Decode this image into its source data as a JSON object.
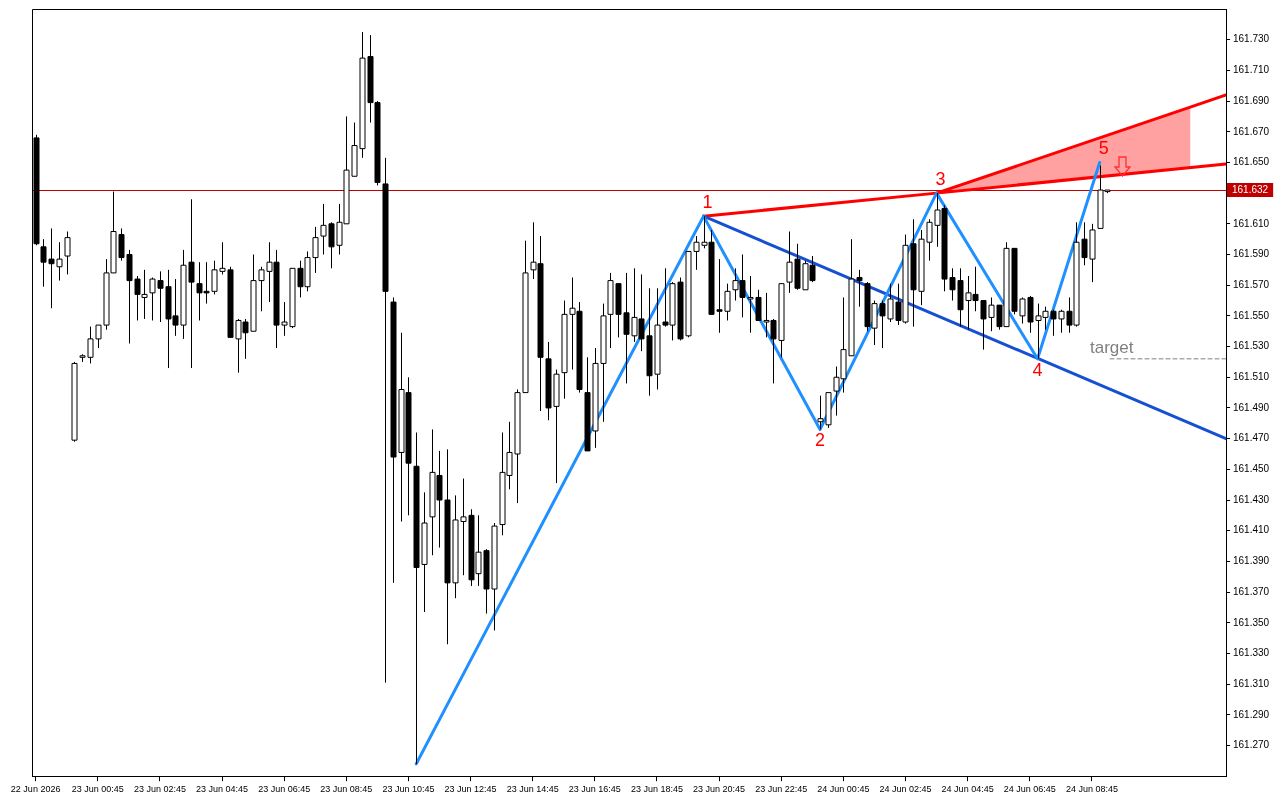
{
  "chart_data": {
    "type": "candlestick",
    "colors": [
      "#000000",
      "#000000",
      "#000000",
      "#ffffff",
      "#ffffff",
      "#ffffff",
      "#ffffff",
      "#ffffff",
      "#ffffff",
      "#ffffff",
      "#ffffff",
      "#000000",
      "#000000",
      "#000000",
      "#ffffff",
      "#ffffff",
      "#000000",
      "#000000",
      "#000000",
      "#ffffff",
      "#000000",
      "#000000",
      "#000000",
      "#ffffff",
      "#ffffff",
      "#000000",
      "#ffffff",
      "#000000",
      "#ffffff",
      "#ffffff",
      "#ffffff",
      "#000000",
      "#ffffff",
      "#ffffff",
      "#000000",
      "#ffffff",
      "#ffffff",
      "#ffffff",
      "#000000",
      "#ffffff",
      "#ffffff",
      "#ffffff",
      "#ffffff",
      "#000000",
      "#000000",
      "#000000",
      "#000000",
      "#ffffff",
      "#000000",
      "#000000",
      "#ffffff",
      "#ffffff",
      "#000000",
      "#000000",
      "#ffffff",
      "#ffffff",
      "#000000",
      "#ffffff",
      "#000000",
      "#ffffff",
      "#ffffff",
      "#ffffff",
      "#ffffff",
      "#ffffff",
      "#ffffff",
      "#000000",
      "#000000",
      "#ffffff",
      "#ffffff",
      "#ffffff",
      "#000000",
      "#000000",
      "#ffffff",
      "#ffffff",
      "#ffffff",
      "#000000",
      "#000000",
      "#ffffff",
      "#000000",
      "#000000",
      "#ffffff",
      "#000000",
      "#ffffff",
      "#000000",
      "#ffffff",
      "#ffffff",
      "#ffffff",
      "#000000",
      "#000000",
      "#ffffff",
      "#ffffff",
      "#000000",
      "#ffffff",
      "#000000",
      "#ffffff",
      "#000000",
      "#ffffff",
      "#ffffff",
      "#000000",
      "#ffffff",
      "#000000",
      "#ffffff",
      "#ffffff",
      "#ffffff",
      "#ffffff",
      "#ffffff",
      "#000000",
      "#000000",
      "#ffffff",
      "#000000",
      "#ffffff",
      "#000000",
      "#ffffff",
      "#000000",
      "#ffffff",
      "#ffffff",
      "#ffffff",
      "#000000",
      "#000000",
      "#000000",
      "#ffffff",
      "#000000",
      "#000000",
      "#ffffff",
      "#000000",
      "#ffffff",
      "#000000",
      "#ffffff",
      "#000000",
      "#ffffff",
      "#ffffff",
      "#000000",
      "#ffffff",
      "#000000",
      "#ffffff",
      "#000000",
      "#ffffff",
      "#ffffff",
      "#ffffff"
    ],
    "x": [
      "2026-06-22T22:45",
      "2026-06-22T23:00",
      "2026-06-22T23:15",
      "2026-06-22T23:30",
      "2026-06-22T23:45",
      "2026-06-23T00:00",
      "2026-06-23T00:15",
      "2026-06-23T00:30",
      "2026-06-23T00:45",
      "2026-06-23T01:00",
      "2026-06-23T01:15",
      "2026-06-23T01:30",
      "2026-06-23T01:45",
      "2026-06-23T02:00",
      "2026-06-23T02:15",
      "2026-06-23T02:30",
      "2026-06-23T02:45",
      "2026-06-23T03:00",
      "2026-06-23T03:15",
      "2026-06-23T03:30",
      "2026-06-23T03:45",
      "2026-06-23T04:00",
      "2026-06-23T04:15",
      "2026-06-23T04:30",
      "2026-06-23T04:45",
      "2026-06-23T05:00",
      "2026-06-23T05:15",
      "2026-06-23T05:30",
      "2026-06-23T05:45",
      "2026-06-23T06:00",
      "2026-06-23T06:15",
      "2026-06-23T06:30",
      "2026-06-23T06:45",
      "2026-06-23T07:00",
      "2026-06-23T07:15",
      "2026-06-23T07:30",
      "2026-06-23T07:45",
      "2026-06-23T08:00",
      "2026-06-23T08:15",
      "2026-06-23T08:30",
      "2026-06-23T08:45",
      "2026-06-23T09:00",
      "2026-06-23T09:15",
      "2026-06-23T09:30",
      "2026-06-23T09:45",
      "2026-06-23T10:00",
      "2026-06-23T10:15",
      "2026-06-23T10:30",
      "2026-06-23T10:45",
      "2026-06-23T11:00",
      "2026-06-23T11:15",
      "2026-06-23T11:30",
      "2026-06-23T11:45",
      "2026-06-23T12:00",
      "2026-06-23T12:15",
      "2026-06-23T12:30",
      "2026-06-23T12:45",
      "2026-06-23T13:00",
      "2026-06-23T13:15",
      "2026-06-23T13:30",
      "2026-06-23T13:45",
      "2026-06-23T14:00",
      "2026-06-23T14:15",
      "2026-06-23T14:30",
      "2026-06-23T14:45",
      "2026-06-23T15:00",
      "2026-06-23T15:15",
      "2026-06-23T15:30",
      "2026-06-23T15:45",
      "2026-06-23T16:00",
      "2026-06-23T16:15",
      "2026-06-23T16:30",
      "2026-06-23T16:45",
      "2026-06-23T17:00",
      "2026-06-23T17:15",
      "2026-06-23T17:30",
      "2026-06-23T17:45",
      "2026-06-23T18:00",
      "2026-06-23T18:15",
      "2026-06-23T18:30",
      "2026-06-23T18:45",
      "2026-06-23T19:00",
      "2026-06-23T19:15",
      "2026-06-23T19:30",
      "2026-06-23T19:45",
      "2026-06-23T20:00",
      "2026-06-23T20:15",
      "2026-06-23T20:30",
      "2026-06-23T20:45",
      "2026-06-23T21:00",
      "2026-06-23T21:15",
      "2026-06-23T21:30",
      "2026-06-23T21:45",
      "2026-06-23T22:00",
      "2026-06-23T22:15",
      "2026-06-23T22:30",
      "2026-06-23T22:45",
      "2026-06-23T23:00",
      "2026-06-23T23:15",
      "2026-06-23T23:30",
      "2026-06-23T23:45",
      "2026-06-24T00:00",
      "2026-06-24T00:15",
      "2026-06-24T00:30",
      "2026-06-24T00:45",
      "2026-06-24T01:00",
      "2026-06-24T01:15",
      "2026-06-24T01:30",
      "2026-06-24T01:45",
      "2026-06-24T02:00",
      "2026-06-24T02:15",
      "2026-06-24T02:30",
      "2026-06-24T02:45",
      "2026-06-24T03:00",
      "2026-06-24T03:15",
      "2026-06-24T03:30",
      "2026-06-24T03:45",
      "2026-06-24T04:00",
      "2026-06-24T04:15",
      "2026-06-24T04:30",
      "2026-06-24T04:45",
      "2026-06-24T05:00",
      "2026-06-24T05:15",
      "2026-06-24T05:30",
      "2026-06-24T05:45",
      "2026-06-24T06:00",
      "2026-06-24T06:15",
      "2026-06-24T06:30",
      "2026-06-24T06:45",
      "2026-06-24T07:00",
      "2026-06-24T07:15",
      "2026-06-24T07:30",
      "2026-06-24T07:45",
      "2026-06-24T08:00",
      "2026-06-24T08:15",
      "2026-06-24T08:30",
      "2026-06-24T08:45",
      "2026-06-24T09:00",
      "2026-06-24T09:15"
    ],
    "ohlc": [
      [
        161.666,
        161.668,
        161.596,
        161.597
      ],
      [
        161.595,
        161.6,
        161.569,
        161.585
      ],
      [
        161.587,
        161.607,
        161.555,
        161.584
      ],
      [
        161.582,
        161.598,
        161.573,
        161.587
      ],
      [
        161.589,
        161.605,
        161.577,
        161.601
      ],
      [
        161.469,
        161.52,
        161.468,
        161.519
      ],
      [
        161.523,
        161.525,
        161.52,
        161.524
      ],
      [
        161.523,
        161.543,
        161.519,
        161.535
      ],
      [
        161.535,
        161.544,
        161.529,
        161.544
      ],
      [
        161.544,
        161.587,
        161.541,
        161.578
      ],
      [
        161.578,
        161.631,
        161.578,
        161.605
      ],
      [
        161.603,
        161.607,
        161.586,
        161.588
      ],
      [
        161.59,
        161.593,
        161.532,
        161.573
      ],
      [
        161.574,
        161.576,
        161.547,
        161.564
      ],
      [
        161.562,
        161.58,
        161.548,
        161.564
      ],
      [
        161.565,
        161.575,
        161.547,
        161.574
      ],
      [
        161.573,
        161.579,
        161.546,
        161.568
      ],
      [
        161.569,
        161.58,
        161.516,
        161.548
      ],
      [
        161.55,
        161.574,
        161.537,
        161.544
      ],
      [
        161.544,
        161.593,
        161.535,
        161.583
      ],
      [
        161.585,
        161.626,
        161.516,
        161.572
      ],
      [
        161.571,
        161.585,
        161.547,
        161.565
      ],
      [
        161.566,
        161.585,
        161.558,
        161.565
      ],
      [
        161.566,
        161.586,
        161.564,
        161.58
      ],
      [
        161.579,
        161.598,
        161.577,
        161.581
      ],
      [
        161.58,
        161.582,
        161.536,
        161.536
      ],
      [
        161.535,
        161.548,
        161.513,
        161.547
      ],
      [
        161.546,
        161.548,
        161.522,
        161.539
      ],
      [
        161.54,
        161.59,
        161.54,
        161.573
      ],
      [
        161.573,
        161.582,
        161.553,
        161.58
      ],
      [
        161.579,
        161.598,
        161.559,
        161.585
      ],
      [
        161.585,
        161.593,
        161.529,
        161.544
      ],
      [
        161.544,
        161.559,
        161.537,
        161.546
      ],
      [
        161.543,
        161.581,
        161.542,
        161.581
      ],
      [
        161.581,
        161.586,
        161.562,
        161.569
      ],
      [
        161.569,
        161.592,
        161.566,
        161.588
      ],
      [
        161.588,
        161.608,
        161.578,
        161.601
      ],
      [
        161.602,
        161.623,
        161.59,
        161.609
      ],
      [
        161.61,
        161.611,
        161.581,
        161.595
      ],
      [
        161.596,
        161.623,
        161.59,
        161.611
      ],
      [
        161.61,
        161.68,
        161.61,
        161.645
      ],
      [
        161.641,
        161.676,
        161.641,
        161.661
      ],
      [
        161.659,
        161.735,
        161.653,
        161.718
      ],
      [
        161.719,
        161.733,
        161.676,
        161.689
      ],
      [
        161.689,
        161.69,
        161.635,
        161.637
      ],
      [
        161.636,
        161.653,
        161.311,
        161.566
      ],
      [
        161.559,
        161.562,
        161.376,
        161.458
      ],
      [
        161.461,
        161.539,
        161.416,
        161.502
      ],
      [
        161.5,
        161.51,
        161.42,
        161.454
      ],
      [
        161.452,
        161.474,
        161.258,
        161.386
      ],
      [
        161.388,
        161.435,
        161.357,
        161.415
      ],
      [
        161.419,
        161.476,
        161.394,
        161.448
      ],
      [
        161.446,
        161.462,
        161.399,
        161.43
      ],
      [
        161.43,
        161.463,
        161.336,
        161.376
      ],
      [
        161.376,
        161.433,
        161.366,
        161.417
      ],
      [
        161.416,
        161.444,
        161.381,
        161.419
      ],
      [
        161.42,
        161.424,
        161.374,
        161.378
      ],
      [
        161.382,
        161.42,
        161.374,
        161.396
      ],
      [
        161.397,
        161.398,
        161.356,
        161.372
      ],
      [
        161.372,
        161.415,
        161.345,
        161.413
      ],
      [
        161.414,
        161.474,
        161.407,
        161.448
      ],
      [
        161.446,
        161.481,
        161.437,
        161.461
      ],
      [
        161.46,
        161.502,
        161.428,
        161.5
      ],
      [
        161.5,
        161.599,
        161.5,
        161.578
      ],
      [
        161.58,
        161.611,
        161.574,
        161.585
      ],
      [
        161.584,
        161.602,
        161.488,
        161.523
      ],
      [
        161.522,
        161.533,
        161.482,
        161.49
      ],
      [
        161.491,
        161.515,
        161.441,
        161.512
      ],
      [
        161.513,
        161.56,
        161.496,
        161.551
      ],
      [
        161.551,
        161.575,
        161.515,
        161.555
      ],
      [
        161.553,
        161.559,
        161.5,
        161.502
      ],
      [
        161.5,
        161.523,
        161.462,
        161.462
      ],
      [
        161.475,
        161.529,
        161.464,
        161.519
      ],
      [
        161.519,
        161.558,
        161.481,
        161.55
      ],
      [
        161.551,
        161.578,
        161.529,
        161.573
      ],
      [
        161.571,
        161.571,
        161.536,
        161.551
      ],
      [
        161.552,
        161.578,
        161.506,
        161.538
      ],
      [
        161.537,
        161.581,
        161.533,
        161.549
      ],
      [
        161.548,
        161.577,
        161.527,
        161.535
      ],
      [
        161.537,
        161.568,
        161.498,
        161.511
      ],
      [
        161.512,
        161.568,
        161.502,
        161.544
      ],
      [
        161.546,
        161.581,
        161.543,
        161.544
      ],
      [
        161.544,
        161.572,
        161.534,
        161.571
      ],
      [
        161.572,
        161.575,
        161.534,
        161.535
      ],
      [
        161.537,
        161.592,
        161.536,
        161.592
      ],
      [
        161.592,
        161.602,
        161.58,
        161.598
      ],
      [
        161.596,
        161.615,
        161.594,
        161.598
      ],
      [
        161.598,
        161.606,
        161.551,
        161.551
      ],
      [
        161.554,
        161.587,
        161.539,
        161.553
      ],
      [
        161.553,
        161.571,
        161.547,
        161.566
      ],
      [
        161.567,
        161.581,
        161.56,
        161.573
      ],
      [
        161.573,
        161.59,
        161.549,
        161.562
      ],
      [
        161.561,
        161.576,
        161.539,
        161.562
      ],
      [
        161.562,
        161.567,
        161.547,
        161.547
      ],
      [
        161.546,
        161.565,
        161.536,
        161.547
      ],
      [
        161.547,
        161.548,
        161.506,
        161.535
      ],
      [
        161.534,
        161.571,
        161.523,
        161.571
      ],
      [
        161.572,
        161.605,
        161.565,
        161.585
      ],
      [
        161.587,
        161.597,
        161.567,
        161.568
      ],
      [
        161.567,
        161.586,
        161.567,
        161.584
      ],
      [
        161.583,
        161.589,
        161.572,
        161.573
      ],
      [
        161.481,
        161.498,
        161.476,
        161.483
      ],
      [
        161.479,
        161.5,
        161.477,
        161.5
      ],
      [
        161.501,
        161.517,
        161.485,
        161.51
      ],
      [
        161.509,
        161.562,
        161.5,
        161.528
      ],
      [
        161.524,
        161.6,
        161.524,
        161.574
      ],
      [
        161.575,
        161.58,
        161.556,
        161.573
      ],
      [
        161.571,
        161.572,
        161.54,
        161.543
      ],
      [
        161.542,
        161.56,
        161.531,
        161.558
      ],
      [
        161.558,
        161.56,
        161.529,
        161.55
      ],
      [
        161.548,
        161.571,
        161.546,
        161.561
      ],
      [
        161.559,
        161.571,
        161.544,
        161.547
      ],
      [
        161.546,
        161.603,
        161.545,
        161.596
      ],
      [
        161.597,
        161.613,
        161.543,
        161.567
      ],
      [
        161.566,
        161.606,
        161.557,
        161.6
      ],
      [
        161.598,
        161.613,
        161.586,
        161.611
      ],
      [
        161.609,
        161.63,
        161.595,
        161.619
      ],
      [
        161.62,
        161.622,
        161.566,
        161.574
      ],
      [
        161.575,
        161.581,
        161.56,
        161.567
      ],
      [
        161.573,
        161.581,
        161.543,
        161.554
      ],
      [
        161.56,
        161.576,
        161.541,
        161.565
      ],
      [
        161.564,
        161.582,
        161.553,
        161.56
      ],
      [
        161.56,
        161.56,
        161.528,
        161.548
      ],
      [
        161.549,
        161.562,
        161.54,
        161.557
      ],
      [
        161.557,
        161.557,
        161.541,
        161.543
      ],
      [
        161.543,
        161.598,
        161.543,
        161.594
      ],
      [
        161.594,
        161.594,
        161.551,
        161.553
      ],
      [
        161.55,
        161.562,
        161.545,
        161.561
      ],
      [
        161.562,
        161.563,
        161.539,
        161.546
      ],
      [
        161.547,
        161.558,
        161.522,
        161.55
      ],
      [
        161.549,
        161.556,
        161.541,
        161.553
      ],
      [
        161.553,
        161.554,
        161.537,
        161.548
      ],
      [
        161.548,
        161.554,
        161.539,
        161.553
      ],
      [
        161.553,
        161.562,
        161.539,
        161.544
      ],
      [
        161.544,
        161.611,
        161.543,
        161.598
      ],
      [
        161.6,
        161.611,
        161.583,
        161.588
      ],
      [
        161.587,
        161.61,
        161.572,
        161.606
      ],
      [
        161.607,
        161.648,
        161.607,
        161.632
      ],
      [
        161.631,
        161.632,
        161.63,
        161.632
      ]
    ],
    "series": [
      {
        "type": "line",
        "color": "#1e90ff",
        "x": [
          "2026-06-23T11:00",
          "2026-06-23T20:15",
          "2026-06-24T00:00",
          "2026-06-24T03:45",
          "2026-06-24T07:00",
          "2026-06-24T09:00"
        ],
        "values": [
          161.258,
          161.615,
          161.476,
          161.63,
          161.522,
          161.65
        ]
      },
      {
        "type": "line",
        "color": "#1650d2",
        "x": [
          "2026-06-23T20:15",
          "2026-06-24T13:04"
        ],
        "values": [
          161.615,
          161.47
        ]
      },
      {
        "type": "line",
        "color": "#ff0000",
        "x": [
          "2026-06-23T20:15",
          "2026-06-24T03:45",
          "2026-06-24T13:04"
        ],
        "values": [
          161.615,
          161.63,
          161.649
        ]
      },
      {
        "type": "line",
        "color": "#ff0000",
        "x": [
          "2026-06-24T03:45",
          "2026-06-24T11:55",
          "2026-06-24T13:04"
        ],
        "values": [
          161.63,
          161.686,
          161.694
        ],
        "lower": [
          161.63,
          161.646,
          null
        ],
        "upper": [
          161.63,
          161.686,
          null
        ]
      },
      {
        "type": "line",
        "name": "target",
        "color": "#808080",
        "line_style": "dashed",
        "x": [
          "2026-06-24T09:20",
          "2026-06-24T13:04"
        ],
        "values": [
          161.522,
          161.522
        ]
      }
    ],
    "ref_lines": [
      {
        "axis": "y",
        "value": 161.632,
        "label": "161.632",
        "color": "#c00000"
      }
    ],
    "annotations": [
      {
        "text": "1",
        "x": "2026-06-23T20:15",
        "y": 161.615
      },
      {
        "text": "2",
        "x": "2026-06-24T00:00",
        "y": 161.476
      },
      {
        "text": "3",
        "x": "2026-06-24T03:45",
        "y": 161.63
      },
      {
        "text": "4",
        "x": "2026-06-24T07:00",
        "y": 161.522
      },
      {
        "text": "5",
        "x": "2026-06-24T09:00",
        "y": 161.65
      }
    ],
    "xlim": [
      "2026-06-22T22:38",
      "2026-06-24T13:04"
    ],
    "ylim": [
      161.25,
      161.75
    ],
    "xticks": [
      {
        "value": "2026-06-22T22:45",
        "label": "22 Jun 2026"
      },
      {
        "value": "2026-06-23T00:45",
        "label": "23 Jun 00:45"
      },
      {
        "value": "2026-06-23T02:45",
        "label": "23 Jun 02:45"
      },
      {
        "value": "2026-06-23T04:45",
        "label": "23 Jun 04:45"
      },
      {
        "value": "2026-06-23T06:45",
        "label": "23 Jun 06:45"
      },
      {
        "value": "2026-06-23T08:45",
        "label": "23 Jun 08:45"
      },
      {
        "value": "2026-06-23T10:45",
        "label": "23 Jun 10:45"
      },
      {
        "value": "2026-06-23T12:45",
        "label": "23 Jun 12:45"
      },
      {
        "value": "2026-06-23T14:45",
        "label": "23 Jun 14:45"
      },
      {
        "value": "2026-06-23T16:45",
        "label": "23 Jun 16:45"
      },
      {
        "value": "2026-06-23T18:45",
        "label": "23 Jun 18:45"
      },
      {
        "value": "2026-06-23T20:45",
        "label": "23 Jun 20:45"
      },
      {
        "value": "2026-06-23T22:45",
        "label": "23 Jun 22:45"
      },
      {
        "value": "2026-06-24T00:45",
        "label": "24 Jun 00:45"
      },
      {
        "value": "2026-06-24T02:45",
        "label": "24 Jun 02:45"
      },
      {
        "value": "2026-06-24T04:45",
        "label": "24 Jun 04:45"
      },
      {
        "value": "2026-06-24T06:45",
        "label": "24 Jun 06:45"
      },
      {
        "value": "2026-06-24T08:45",
        "label": "24 Jun 08:45"
      }
    ],
    "yticks": [
      {
        "value": 161.27,
        "label": "161.270"
      },
      {
        "value": 161.29,
        "label": "161.290"
      },
      {
        "value": 161.31,
        "label": "161.310"
      },
      {
        "value": 161.33,
        "label": "161.330"
      },
      {
        "value": 161.35,
        "label": "161.350"
      },
      {
        "value": 161.37,
        "label": "161.370"
      },
      {
        "value": 161.39,
        "label": "161.390"
      },
      {
        "value": 161.41,
        "label": "161.410"
      },
      {
        "value": 161.43,
        "label": "161.430"
      },
      {
        "value": 161.45,
        "label": "161.450"
      },
      {
        "value": 161.47,
        "label": "161.470"
      },
      {
        "value": 161.49,
        "label": "161.490"
      },
      {
        "value": 161.51,
        "label": "161.510"
      },
      {
        "value": 161.53,
        "label": "161.530"
      },
      {
        "value": 161.55,
        "label": "161.550"
      },
      {
        "value": 161.57,
        "label": "161.570"
      },
      {
        "value": 161.59,
        "label": "161.590"
      },
      {
        "value": 161.61,
        "label": "161.610"
      },
      {
        "value": 161.65,
        "label": "161.650"
      },
      {
        "value": 161.67,
        "label": "161.670"
      },
      {
        "value": 161.69,
        "label": "161.690"
      },
      {
        "value": 161.71,
        "label": "161.710"
      },
      {
        "value": 161.73,
        "label": "161.730"
      }
    ]
  }
}
